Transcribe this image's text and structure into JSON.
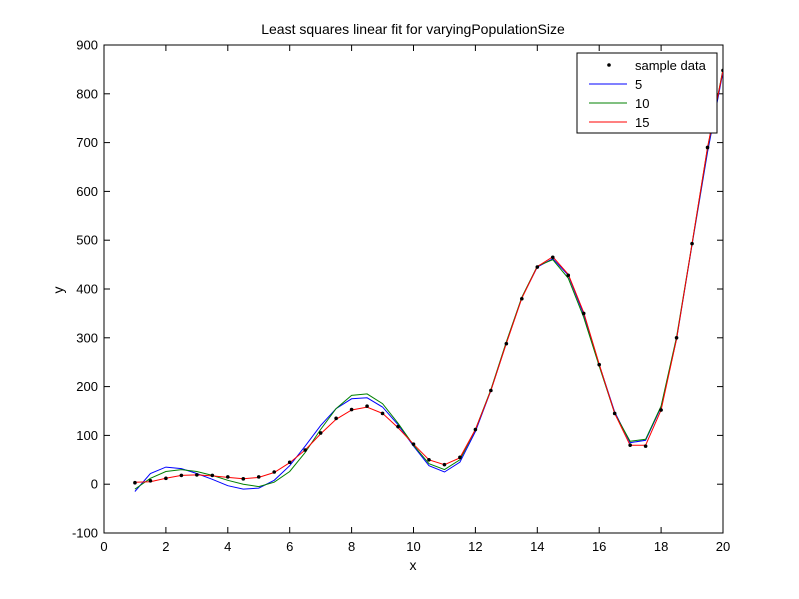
{
  "chart_data": {
    "type": "line",
    "title": "Least squares linear fit for varyingPopulationSize",
    "xlabel": "x",
    "ylabel": "y",
    "xlim": [
      0,
      20
    ],
    "ylim": [
      -100,
      900
    ],
    "xticks": [
      0,
      2,
      4,
      6,
      8,
      10,
      12,
      14,
      16,
      18,
      20
    ],
    "yticks": [
      -100,
      0,
      100,
      200,
      300,
      400,
      500,
      600,
      700,
      800,
      900
    ],
    "x_tick_labels": [
      "0",
      "2",
      "4",
      "6",
      "8",
      "10",
      "12",
      "14",
      "16",
      "18",
      "20"
    ],
    "y_tick_labels": [
      "-100",
      "0",
      "100",
      "200",
      "300",
      "400",
      "500",
      "600",
      "700",
      "800",
      "900"
    ],
    "grid": false,
    "legend_position": "top-right",
    "x": [
      1,
      1.5,
      2,
      2.5,
      3,
      3.5,
      4,
      4.5,
      5,
      5.5,
      6,
      6.5,
      7,
      7.5,
      8,
      8.5,
      9,
      9.5,
      10,
      10.5,
      11,
      11.5,
      12,
      12.5,
      13,
      13.5,
      14,
      14.5,
      15,
      15.5,
      16,
      16.5,
      17,
      17.5,
      18,
      18.5,
      19,
      19.5,
      20
    ],
    "series": [
      {
        "name": "sample data",
        "style": "markers",
        "color": "#000000",
        "values": [
          3,
          7,
          12,
          18,
          19,
          18,
          15,
          11,
          15,
          25,
          45,
          70,
          105,
          135,
          153,
          160,
          145,
          118,
          82,
          50,
          40,
          55,
          112,
          192,
          288,
          380,
          445,
          465,
          428,
          350,
          245,
          145,
          80,
          78,
          152,
          300,
          493,
          690,
          848
        ]
      },
      {
        "name": "5",
        "style": "line",
        "color": "#0000ff",
        "values": [
          -15,
          22,
          35,
          32,
          22,
          10,
          -3,
          -10,
          -8,
          8,
          38,
          78,
          120,
          155,
          175,
          177,
          158,
          122,
          78,
          38,
          25,
          45,
          108,
          192,
          290,
          382,
          445,
          462,
          428,
          348,
          245,
          148,
          85,
          90,
          158,
          298,
          490,
          680,
          845
        ]
      },
      {
        "name": "10",
        "style": "line",
        "color": "#008000",
        "values": [
          -10,
          12,
          26,
          30,
          26,
          18,
          8,
          0,
          -5,
          4,
          26,
          65,
          112,
          155,
          182,
          185,
          165,
          125,
          80,
          42,
          30,
          50,
          112,
          194,
          292,
          383,
          447,
          460,
          422,
          342,
          242,
          145,
          88,
          92,
          160,
          302,
          492,
          688,
          850
        ]
      },
      {
        "name": "15",
        "style": "line",
        "color": "#ff0000",
        "values": [
          4,
          5,
          12,
          18,
          19,
          17,
          14,
          11,
          14,
          24,
          44,
          70,
          103,
          133,
          152,
          158,
          145,
          116,
          82,
          50,
          40,
          54,
          112,
          192,
          289,
          381,
          446,
          466,
          430,
          352,
          246,
          145,
          80,
          80,
          152,
          298,
          492,
          690,
          848
        ]
      }
    ]
  }
}
